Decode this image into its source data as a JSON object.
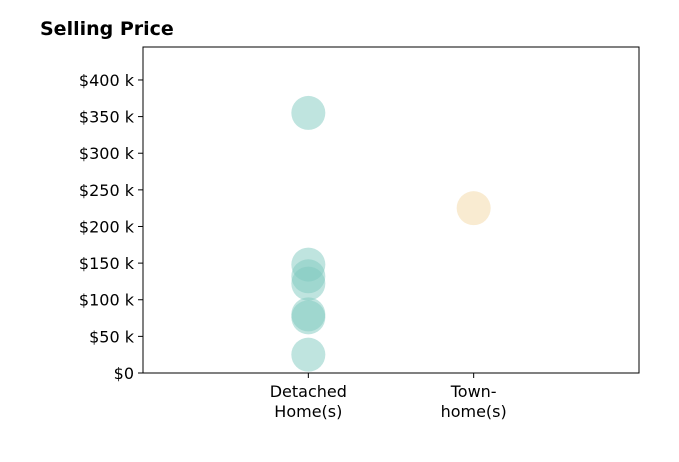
{
  "chart_data": {
    "type": "scatter",
    "title": "Selling Price",
    "xlabel": "",
    "ylabel": "",
    "categories": [
      [
        "Detached",
        "Home(s)"
      ],
      [
        "Town-",
        "home(s)"
      ]
    ],
    "xlim": [
      -1,
      2
    ],
    "ylim": [
      0,
      445000
    ],
    "y_ticks": [
      0,
      50000,
      100000,
      150000,
      200000,
      250000,
      300000,
      350000,
      400000
    ],
    "y_tick_labels": [
      "$0",
      "$50 k",
      "$100 k",
      "$150 k",
      "$200 k",
      "$250 k",
      "$300 k",
      "$350 k",
      "$400 k"
    ],
    "grid": false,
    "legend": "none",
    "series": [
      {
        "category_index": 0,
        "color": "#7fc9bf",
        "opacity": 0.5,
        "values": [
          355000,
          148000,
          132000,
          122000,
          80000,
          76000,
          25000
        ]
      },
      {
        "category_index": 1,
        "color": "#f5deb3",
        "opacity": 0.6,
        "values": [
          225000
        ]
      }
    ]
  }
}
